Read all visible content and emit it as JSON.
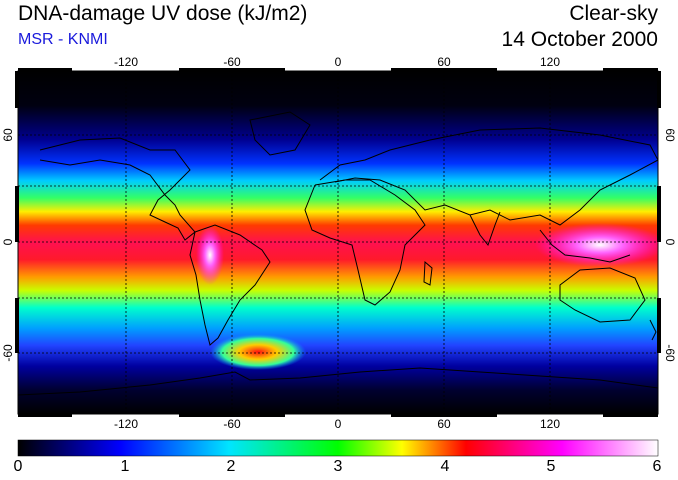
{
  "header": {
    "title": "DNA-damage UV dose (kJ/m2)",
    "source": "MSR - KNMI",
    "condition": "Clear-sky",
    "date": "14 October 2000"
  },
  "map": {
    "longitude_ticks": [
      "-120",
      "-60",
      "0",
      "60",
      "120"
    ],
    "latitude_ticks": [
      "60",
      "0",
      "-60"
    ],
    "gridlines": true,
    "projection": "equirectangular"
  },
  "colorbar": {
    "min": 0,
    "max": 6,
    "labels": [
      "0",
      "1",
      "2",
      "3",
      "4",
      "5",
      "6"
    ],
    "colors": [
      "#000000",
      "#0000ff",
      "#00e5ff",
      "#00ff00",
      "#ffff00",
      "#ff0000",
      "#ff00ff",
      "#ffffff"
    ]
  }
}
